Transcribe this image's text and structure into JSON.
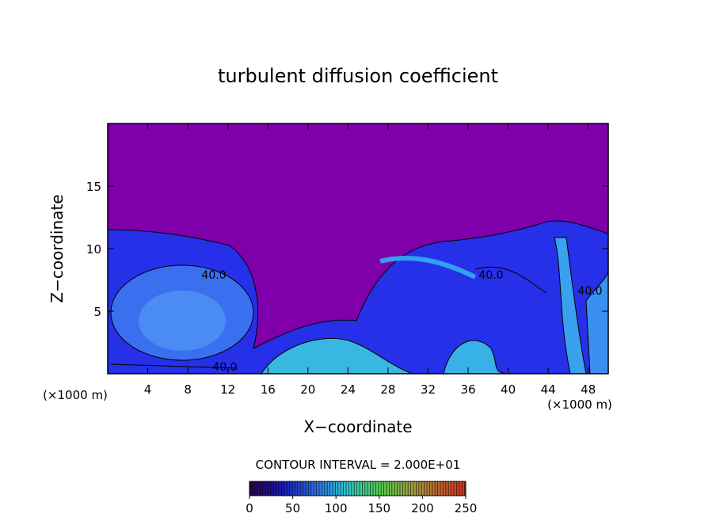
{
  "chart_data": {
    "type": "contour",
    "title": "turbulent diffusion coefficient",
    "x_label": "X−coordinate",
    "y_label": "Z−coordinate",
    "x_unit": "(×1000 m)",
    "y_unit": "(×1000 m)",
    "xlim": [
      0,
      50
    ],
    "ylim": [
      0,
      20
    ],
    "xticks": [
      4,
      8,
      12,
      16,
      20,
      24,
      28,
      32,
      36,
      40,
      44,
      48
    ],
    "yticks": [
      5,
      10,
      15
    ],
    "contour_labels": [
      "40.0",
      "40.0",
      "40.0",
      "40.0"
    ],
    "contour_interval_text": "CONTOUR INTERVAL = 2.000E+01",
    "colorbar": {
      "lim": [
        0,
        250
      ],
      "ticks": [
        0,
        50,
        100,
        150,
        200,
        250
      ]
    }
  }
}
